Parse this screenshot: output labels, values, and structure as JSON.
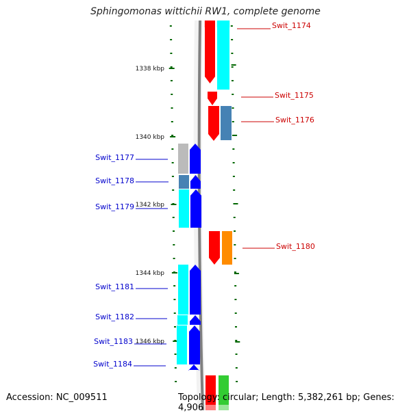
{
  "title": "Sphingomonas wittichii RW1, complete genome",
  "footer": {
    "accession": "Accession: NC_009511",
    "summary": "Topology: circular; Length: 5,382,261 bp; Genes: 4,906"
  },
  "colors": {
    "ruler": "#006600",
    "backbone": "#808080",
    "plus_strand_cds": "#ff0000",
    "minus_strand_cds": "#0000ff",
    "label_plus": "#cc0000",
    "label_minus": "#0000cc",
    "cyan": "#00ffff",
    "steelblue": "#4682b4",
    "gray": "#bbbbbb",
    "orange": "#ff8c00",
    "green": "#33cc33"
  },
  "scale_labels": [
    "1338 kbp",
    "1340 kbp",
    "1342 kbp",
    "1344 kbp",
    "1346 kbp"
  ],
  "genes": [
    {
      "label": "Swit_1174",
      "strand": "+",
      "cog_color": "cyan"
    },
    {
      "label": "Swit_1175",
      "strand": "+",
      "cog_color": "none"
    },
    {
      "label": "Swit_1176",
      "strand": "+",
      "cog_color": "steelblue"
    },
    {
      "label": "Swit_1177",
      "strand": "-",
      "cog_color": "gray"
    },
    {
      "label": "Swit_1178",
      "strand": "-",
      "cog_color": "steelblue"
    },
    {
      "label": "Swit_1179",
      "strand": "-",
      "cog_color": "cyan"
    },
    {
      "label": "Swit_1180",
      "strand": "+",
      "cog_color": "orange"
    },
    {
      "label": "Swit_1181",
      "strand": "-",
      "cog_color": "cyan"
    },
    {
      "label": "Swit_1182",
      "strand": "-",
      "cog_color": "cyan"
    },
    {
      "label": "Swit_1183",
      "strand": "-",
      "cog_color": "cyan"
    },
    {
      "label": "Swit_1184",
      "strand": "-",
      "cog_color": "none"
    },
    {
      "label": "",
      "strand": "+",
      "cog_color": "green"
    }
  ]
}
